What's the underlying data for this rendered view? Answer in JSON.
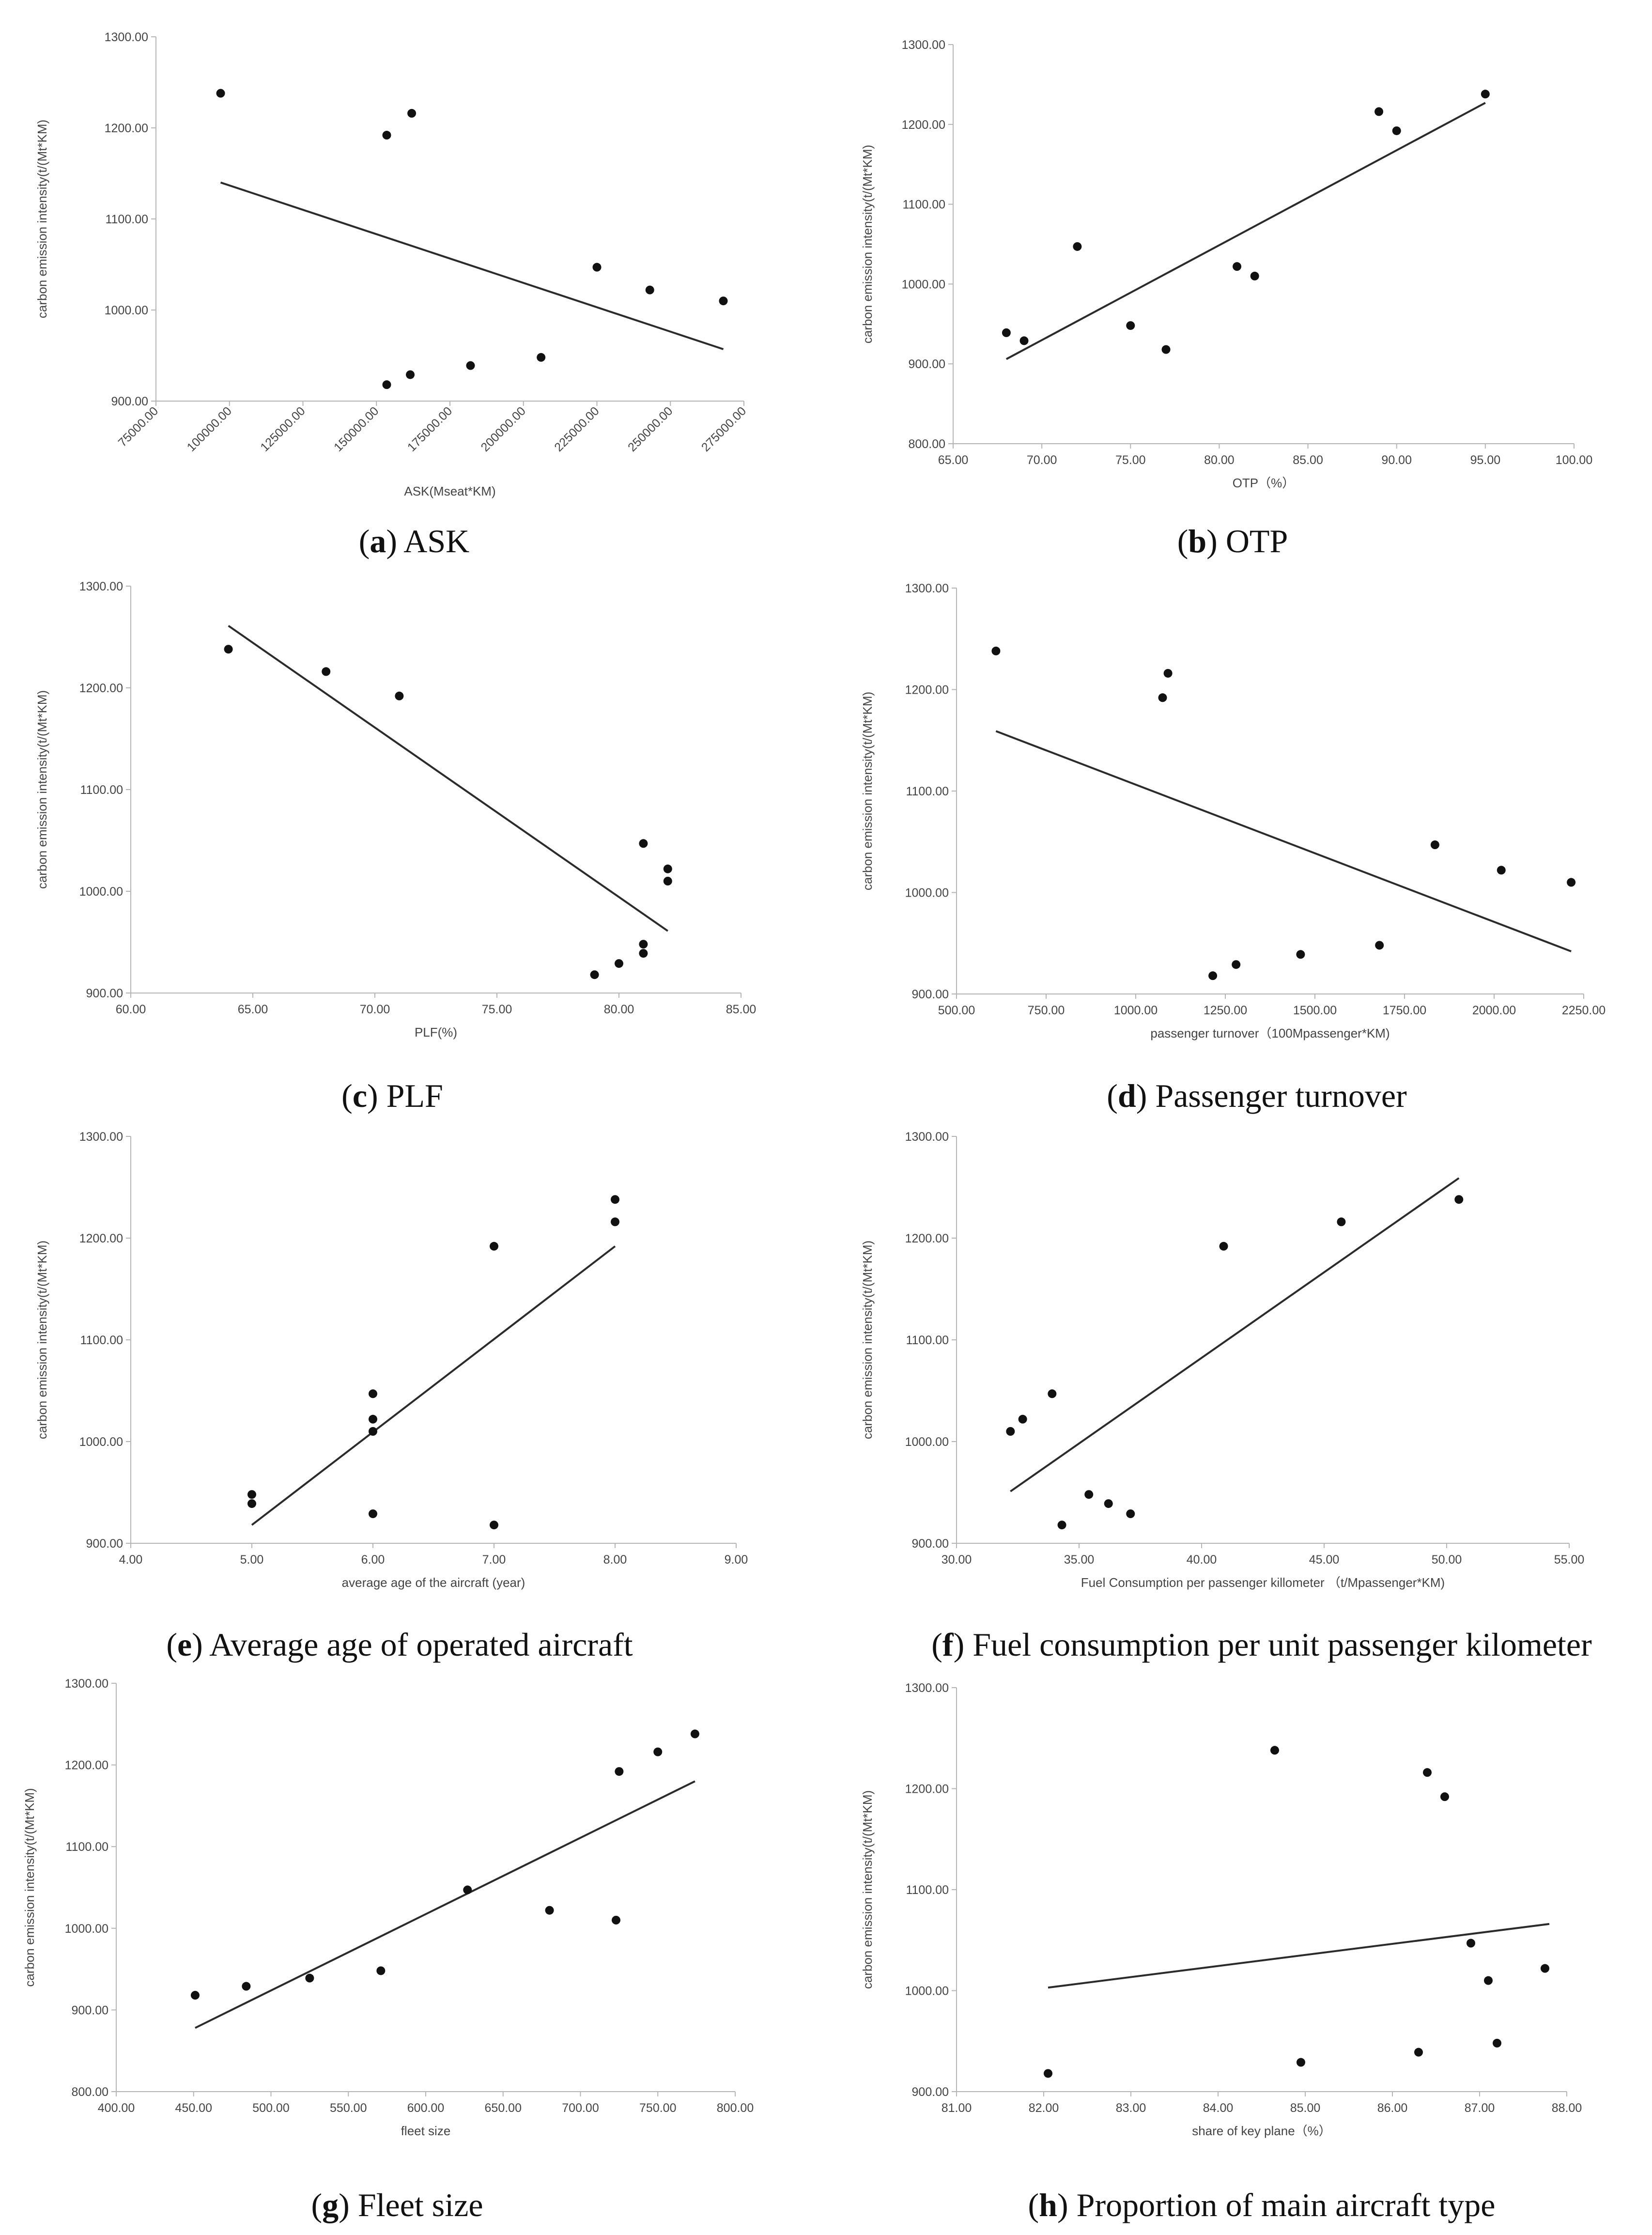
{
  "chart_data": [
    {
      "type": "scatter",
      "caption_letter": "a",
      "caption_text": "ASK",
      "xlabel": "ASK(Mseat*KM)",
      "ylabel": "carbon emission intensity(t/(Mt*KM)",
      "xlim": [
        75000,
        275000
      ],
      "ylim": [
        900,
        1300
      ],
      "x_ticks": [
        "75000.00",
        "100000.00",
        "125000.00",
        "150000.00",
        "175000.00",
        "200000.00",
        "225000.00",
        "250000.00",
        "275000.00"
      ],
      "y_ticks": [
        "900.00",
        "1000.00",
        "1100.00",
        "1200.00",
        "1300.00"
      ],
      "x_tick_rotation": -45,
      "points": [
        [
          97000,
          1238
        ],
        [
          153500,
          1192
        ],
        [
          162000,
          1216
        ],
        [
          153500,
          918
        ],
        [
          161500,
          929
        ],
        [
          182000,
          939
        ],
        [
          206000,
          948
        ],
        [
          225000,
          1047
        ],
        [
          243000,
          1022
        ],
        [
          268000,
          1010
        ]
      ],
      "trendline": [
        [
          97000,
          1140
        ],
        [
          268000,
          957
        ]
      ]
    },
    {
      "type": "scatter",
      "caption_letter": "b",
      "caption_text": "OTP",
      "xlabel": "OTP（%）",
      "ylabel": "carbon emission intensity(t/(Mt*KM)",
      "xlim": [
        65,
        100
      ],
      "ylim": [
        800,
        1300
      ],
      "x_ticks": [
        "65.00",
        "70.00",
        "75.00",
        "80.00",
        "85.00",
        "90.00",
        "95.00",
        "100.00"
      ],
      "y_ticks": [
        "800.00",
        "900.00",
        "1000.00",
        "1100.00",
        "1200.00",
        "1300.00"
      ],
      "x_tick_rotation": 0,
      "points": [
        [
          68,
          939
        ],
        [
          69,
          929
        ],
        [
          72,
          1047
        ],
        [
          75,
          948
        ],
        [
          77,
          918
        ],
        [
          81,
          1022
        ],
        [
          82,
          1010
        ],
        [
          89,
          1216
        ],
        [
          90,
          1192
        ],
        [
          95,
          1238
        ]
      ],
      "trendline": [
        [
          68,
          906
        ],
        [
          95,
          1227
        ]
      ]
    },
    {
      "type": "scatter",
      "caption_letter": "c",
      "caption_text": "PLF",
      "xlabel": "PLF(%)",
      "ylabel": "carbon emission intensity(t/(Mt*KM)",
      "xlim": [
        60,
        85
      ],
      "ylim": [
        900,
        1300
      ],
      "x_ticks": [
        "60.00",
        "65.00",
        "70.00",
        "75.00",
        "80.00",
        "85.00"
      ],
      "y_ticks": [
        "900.00",
        "1000.00",
        "1100.00",
        "1200.00",
        "1300.00"
      ],
      "x_tick_rotation": 0,
      "points": [
        [
          64,
          1238
        ],
        [
          68,
          1216
        ],
        [
          71,
          1192
        ],
        [
          79,
          918
        ],
        [
          80,
          929
        ],
        [
          81,
          939
        ],
        [
          81,
          948
        ],
        [
          81,
          1047
        ],
        [
          82,
          1022
        ],
        [
          82,
          1010
        ]
      ],
      "trendline": [
        [
          64,
          1261
        ],
        [
          82,
          961
        ]
      ]
    },
    {
      "type": "scatter",
      "caption_letter": "d",
      "caption_text": "Passenger turnover",
      "xlabel": "passenger turnover（100Mpassenger*KM)",
      "ylabel": "carbon emission intensity(t/(Mt*KM)",
      "xlim": [
        500,
        2250
      ],
      "ylim": [
        900,
        1300
      ],
      "x_ticks": [
        "500.00",
        "750.00",
        "1000.00",
        "1250.00",
        "1500.00",
        "1750.00",
        "2000.00",
        "2250.00"
      ],
      "y_ticks": [
        "900.00",
        "1000.00",
        "1100.00",
        "1200.00",
        "1300.00"
      ],
      "x_tick_rotation": 0,
      "points": [
        [
          610,
          1238
        ],
        [
          1075,
          1192
        ],
        [
          1090,
          1216
        ],
        [
          1215,
          918
        ],
        [
          1280,
          929
        ],
        [
          1460,
          939
        ],
        [
          1680,
          948
        ],
        [
          1835,
          1047
        ],
        [
          2020,
          1022
        ],
        [
          2215,
          1010
        ]
      ],
      "trendline": [
        [
          610,
          1159
        ],
        [
          2215,
          942
        ]
      ]
    },
    {
      "type": "scatter",
      "caption_letter": "e",
      "caption_text": "Average age of operated aircraft",
      "xlabel": "average age of the aircraft (year)",
      "ylabel": "carbon emission intensity(t/(Mt*KM)",
      "xlim": [
        4,
        9
      ],
      "ylim": [
        900,
        1300
      ],
      "x_ticks": [
        "4.00",
        "5.00",
        "6.00",
        "7.00",
        "8.00",
        "9.00"
      ],
      "y_ticks": [
        "900.00",
        "1000.00",
        "1100.00",
        "1200.00",
        "1300.00"
      ],
      "x_tick_rotation": 0,
      "points": [
        [
          5,
          948
        ],
        [
          5,
          939
        ],
        [
          6,
          1047
        ],
        [
          6,
          1022
        ],
        [
          6,
          1010
        ],
        [
          6,
          929
        ],
        [
          7,
          1192
        ],
        [
          7,
          918
        ],
        [
          8,
          1238
        ],
        [
          8,
          1216
        ]
      ],
      "trendline": [
        [
          5,
          918
        ],
        [
          8,
          1192
        ]
      ]
    },
    {
      "type": "scatter",
      "caption_letter": "f",
      "caption_text": "Fuel consumption per unit passenger kilometer",
      "xlabel": "Fuel Consumption per passenger killometer （t/Mpassenger*KM)",
      "ylabel": "carbon emission intensity(t/(Mt*KM)",
      "xlim": [
        30,
        55
      ],
      "ylim": [
        900,
        1300
      ],
      "x_ticks": [
        "30.00",
        "35.00",
        "40.00",
        "45.00",
        "50.00",
        "55.00"
      ],
      "y_ticks": [
        "900.00",
        "1000.00",
        "1100.00",
        "1200.00",
        "1300.00"
      ],
      "x_tick_rotation": 0,
      "points": [
        [
          32.2,
          1010
        ],
        [
          32.7,
          1022
        ],
        [
          33.9,
          1047
        ],
        [
          34.3,
          918
        ],
        [
          35.4,
          948
        ],
        [
          36.2,
          939
        ],
        [
          37.1,
          929
        ],
        [
          40.9,
          1192
        ],
        [
          45.7,
          1216
        ],
        [
          50.5,
          1238
        ]
      ],
      "trendline": [
        [
          32.2,
          951
        ],
        [
          50.5,
          1259
        ]
      ]
    },
    {
      "type": "scatter",
      "caption_letter": "g",
      "caption_text": "Fleet size",
      "xlabel": "fleet size",
      "ylabel": "carbon emission intensity(t/(Mt*KM)",
      "xlim": [
        400,
        800
      ],
      "ylim": [
        800,
        1300
      ],
      "x_ticks": [
        "400.00",
        "450.00",
        "500.00",
        "550.00",
        "600.00",
        "650.00",
        "700.00",
        "750.00",
        "800.00"
      ],
      "y_ticks": [
        "800.00",
        "900.00",
        "1000.00",
        "1100.00",
        "1200.00",
        "1300.00"
      ],
      "x_tick_rotation": 0,
      "points": [
        [
          451,
          918
        ],
        [
          484,
          929
        ],
        [
          525,
          939
        ],
        [
          571,
          948
        ],
        [
          627,
          1047
        ],
        [
          680,
          1022
        ],
        [
          723,
          1010
        ],
        [
          725,
          1192
        ],
        [
          750,
          1216
        ],
        [
          774,
          1238
        ]
      ],
      "trendline": [
        [
          451,
          878
        ],
        [
          774,
          1180
        ]
      ]
    },
    {
      "type": "scatter",
      "caption_letter": "h",
      "caption_text": "Proportion of main aircraft type",
      "xlabel": "share of key plane（%）",
      "ylabel": "carbon emission intensity(t/(Mt*KM)",
      "xlim": [
        81,
        88
      ],
      "ylim": [
        900,
        1300
      ],
      "x_ticks": [
        "81.00",
        "82.00",
        "83.00",
        "84.00",
        "85.00",
        "86.00",
        "87.00",
        "88.00"
      ],
      "y_ticks": [
        "900.00",
        "1000.00",
        "1100.00",
        "1200.00",
        "1300.00"
      ],
      "x_tick_rotation": 0,
      "points": [
        [
          82.05,
          918
        ],
        [
          84.65,
          1238
        ],
        [
          84.95,
          929
        ],
        [
          86.3,
          939
        ],
        [
          86.4,
          1216
        ],
        [
          86.6,
          1192
        ],
        [
          86.9,
          1047
        ],
        [
          87.1,
          1010
        ],
        [
          87.2,
          948
        ],
        [
          87.75,
          1022
        ]
      ],
      "trendline": [
        [
          82.05,
          1003
        ],
        [
          87.8,
          1066
        ]
      ]
    }
  ]
}
